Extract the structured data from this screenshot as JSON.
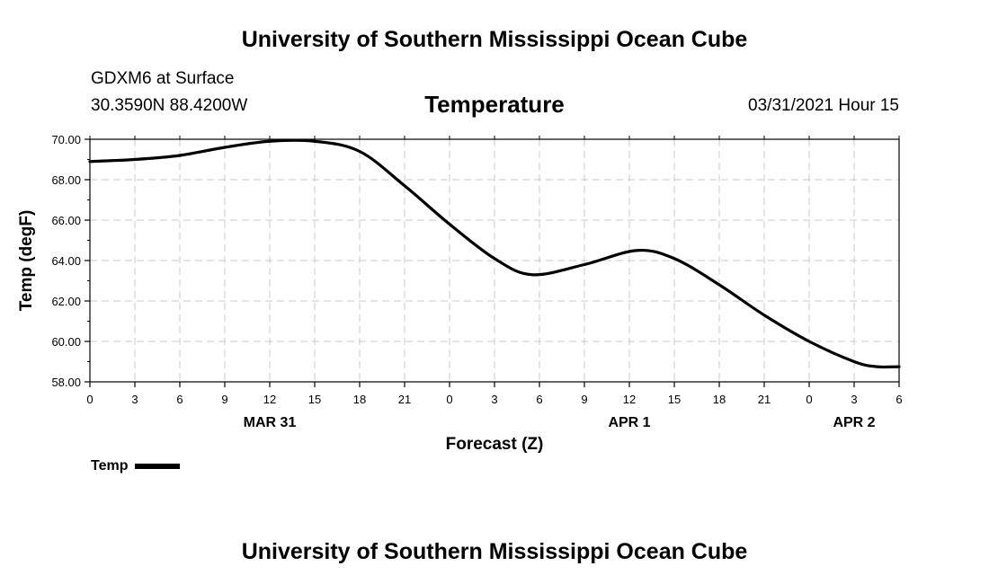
{
  "header": {
    "org_title": "University of Southern Mississippi Ocean Cube",
    "station": "GDXM6 at Surface",
    "coords": "30.3590N  88.4200W",
    "chart_title": "Temperature",
    "datetime": "03/31/2021 Hour 15"
  },
  "footer": {
    "org_title": "University of Southern Mississippi Ocean Cube"
  },
  "legend": {
    "label": "Temp"
  },
  "chart_data": {
    "type": "line",
    "title": "Temperature",
    "xlabel": "Forecast (Z)",
    "ylabel": "Temp (degF)",
    "ylim": [
      58,
      70
    ],
    "xlim": [
      0,
      54
    ],
    "grid": true,
    "legend_position": "bottom-left",
    "y_ticks": [
      "58.00",
      "60.00",
      "62.00",
      "64.00",
      "66.00",
      "68.00",
      "70.00"
    ],
    "y_tick_values": [
      58,
      60,
      62,
      64,
      66,
      68,
      70
    ],
    "x_tick_labels": [
      "0",
      "3",
      "6",
      "9",
      "12",
      "15",
      "18",
      "21",
      "0",
      "3",
      "6",
      "9",
      "12",
      "15",
      "18",
      "21",
      "0",
      "3",
      "6"
    ],
    "date_labels": [
      {
        "label": "MAR 31",
        "hour": 12
      },
      {
        "label": "APR 1",
        "hour": 36
      },
      {
        "label": "APR 2",
        "hour": 51
      }
    ],
    "series": [
      {
        "name": "Temp",
        "color": "#000000",
        "x": [
          0,
          3,
          6,
          9,
          12,
          15,
          18,
          21,
          24,
          27,
          29.5,
          33,
          36.5,
          39,
          42,
          45,
          48,
          51,
          52.5,
          54
        ],
        "values": [
          68.9,
          69.0,
          69.2,
          69.6,
          69.9,
          69.9,
          69.4,
          67.7,
          65.8,
          64.1,
          63.3,
          63.8,
          64.5,
          64.1,
          62.8,
          61.3,
          60.0,
          59.0,
          58.75,
          58.75
        ]
      }
    ]
  }
}
